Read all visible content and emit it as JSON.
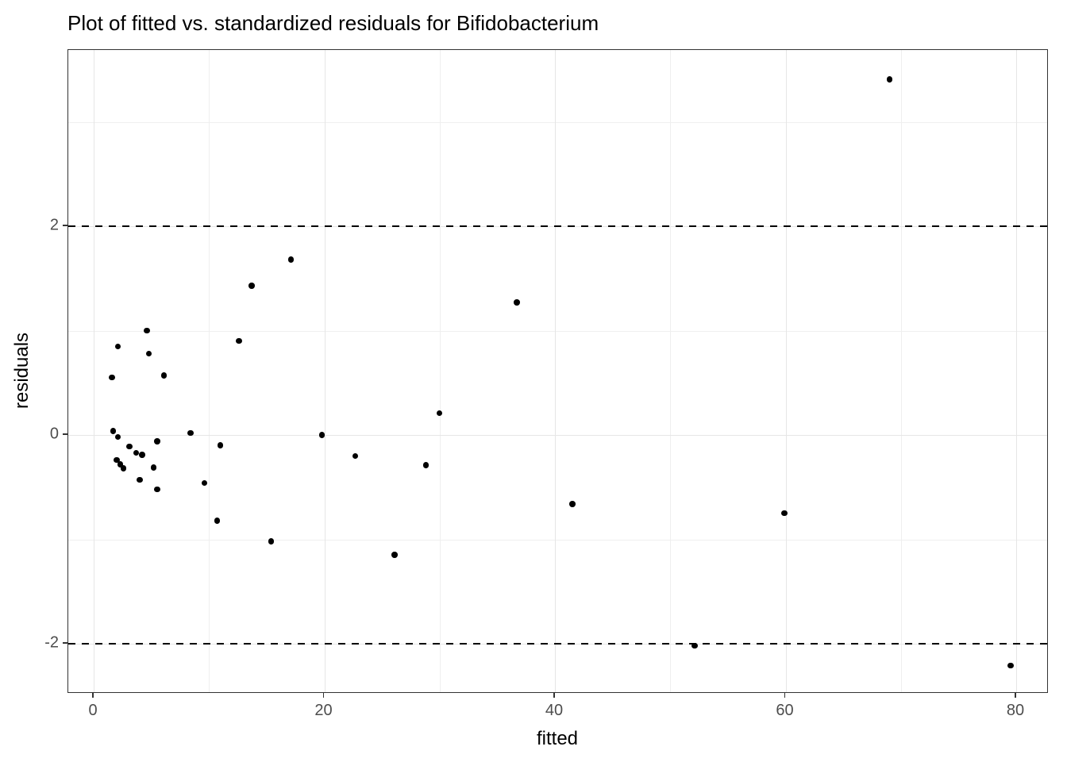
{
  "chart_data": {
    "type": "scatter",
    "title": "Plot of fitted vs. standardized residuals for Bifidobacterium",
    "xlabel": "fitted",
    "ylabel": "residuals",
    "xlim": [
      -2.2,
      82.82
    ],
    "ylim": [
      -2.48,
      3.69
    ],
    "x_major_ticks": [
      0,
      20,
      40,
      60,
      80
    ],
    "x_minor_ticks": [
      10,
      30,
      50,
      70
    ],
    "y_major_ticks": [
      -2,
      0,
      2
    ],
    "y_minor_ticks": [
      -1,
      1,
      3
    ],
    "grid": true,
    "legend": "none",
    "hlines": [
      {
        "y": 2,
        "style": "dashed",
        "color": "#000000"
      },
      {
        "y": -2,
        "style": "dashed",
        "color": "#000000"
      }
    ],
    "points": [
      [
        69.0,
        3.41
      ],
      [
        17.1,
        1.68
      ],
      [
        13.7,
        1.43
      ],
      [
        36.7,
        1.27
      ],
      [
        4.6,
        1.0
      ],
      [
        12.6,
        0.9
      ],
      [
        2.1,
        0.85
      ],
      [
        4.8,
        0.78
      ],
      [
        6.1,
        0.57
      ],
      [
        1.6,
        0.55
      ],
      [
        30.0,
        0.21
      ],
      [
        1.7,
        0.04
      ],
      [
        8.4,
        0.02
      ],
      [
        19.8,
        0.0
      ],
      [
        2.1,
        -0.02
      ],
      [
        5.5,
        -0.06
      ],
      [
        11.0,
        -0.1
      ],
      [
        3.1,
        -0.11
      ],
      [
        3.7,
        -0.17
      ],
      [
        4.2,
        -0.19
      ],
      [
        22.7,
        -0.2
      ],
      [
        2.0,
        -0.24
      ],
      [
        2.3,
        -0.28
      ],
      [
        28.8,
        -0.29
      ],
      [
        5.2,
        -0.31
      ],
      [
        2.6,
        -0.32
      ],
      [
        4.0,
        -0.43
      ],
      [
        9.6,
        -0.46
      ],
      [
        5.5,
        -0.52
      ],
      [
        41.5,
        -0.66
      ],
      [
        59.9,
        -0.75
      ],
      [
        10.7,
        -0.82
      ],
      [
        15.4,
        -1.02
      ],
      [
        26.1,
        -1.15
      ],
      [
        52.1,
        -2.02
      ],
      [
        79.5,
        -2.21
      ]
    ],
    "point_color": "#000000",
    "grid_major_color": "#e6e6e6",
    "grid_minor_color": "#efefef",
    "panel_border_color": "#333333",
    "tick_label_color": "#4d4d4d"
  }
}
